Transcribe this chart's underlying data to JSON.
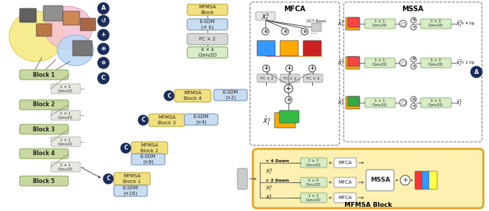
{
  "bg_color": "#ffffff",
  "blocks_left": [
    "Block 1",
    "Block 2",
    "Block 3",
    "Block 4",
    "Block 5"
  ],
  "blocks_left_color": "#c8d8a0",
  "blocks_left_ec": "#8aaa60",
  "conv_label": "1 × 1\nConv2D",
  "mfmsa_blocks": [
    "MFMSA\nBlock 1",
    "MFMSA\nBlock 2",
    "MFMSA\nBlock 3",
    "MFMSA\nBlock 4"
  ],
  "mfmsa_color": "#f0e080",
  "mfmsa_ec": "#c0a830",
  "esdm_labels": [
    "E-SDM\n(×16)",
    "E-SDM\n(×8)",
    "E-SDM\n(×4)",
    "E-SDM\n(×2)"
  ],
  "esdm_color": "#c8ddf0",
  "esdm_ec": "#7090c0",
  "top_blocks": [
    "MFMSA\nBlock",
    "E-SDM\n(× k)",
    "FC × 2",
    "k × k\nConv2D"
  ],
  "top_block_colors": [
    "#f0e080",
    "#c8ddf0",
    "#d8d8d8",
    "#d8ecc8"
  ],
  "top_block_ecs": [
    "#c0a830",
    "#7090c0",
    "#999999",
    "#80a860"
  ],
  "legend_symbols": [
    "A",
    "C",
    "+",
    "÷",
    "⊗",
    "C"
  ],
  "mfca_title": "MFCA",
  "mssa_title": "MSSA",
  "mfmsa_block_title": "MFMSA Block",
  "bottom_conv_labels": [
    "7 × 7\nConv2D",
    "5 × 5\nConv2D",
    "3 × 3\nConv2D"
  ],
  "conv_box_color": "#d8ecc8",
  "conv_box_ec": "#80a860",
  "bottom_frame_color": "#e0a020",
  "bottom_frame_fill": "#fdf0b0",
  "dark_blue": "#1a2d5a",
  "gray_conv": "#e8e8e0"
}
